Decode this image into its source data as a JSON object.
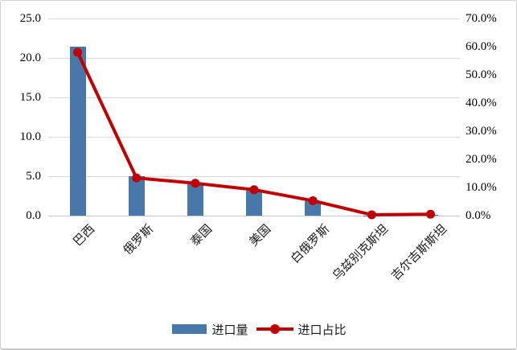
{
  "chart_data": {
    "type": "combo-bar-line",
    "title": "",
    "categories": [
      "巴西",
      "俄罗斯",
      "泰国",
      "美国",
      "白俄罗斯",
      "乌兹别克斯坦",
      "吉尔吉斯斯坦"
    ],
    "series": [
      {
        "name": "进口量",
        "type": "bar",
        "axis": "left",
        "values": [
          21.4,
          5.0,
          4.0,
          3.2,
          1.8,
          0.05,
          0.1
        ]
      },
      {
        "name": "进口占比",
        "type": "line",
        "axis": "right",
        "unit": "%",
        "values": [
          58.0,
          13.4,
          11.5,
          9.2,
          5.3,
          0.3,
          0.5
        ]
      }
    ],
    "left_axis": {
      "min": 0,
      "max": 25,
      "ticks": [
        "25.0",
        "20.0",
        "15.0",
        "10.0",
        "5.0",
        "0.0"
      ]
    },
    "right_axis": {
      "min": 0,
      "max": 70,
      "ticks": [
        "70.0%",
        "60.0%",
        "50.0%",
        "40.0%",
        "30.0%",
        "20.0%",
        "10.0%",
        "0.0%"
      ]
    },
    "grid": true,
    "legend_position": "bottom"
  },
  "legend": {
    "items": [
      {
        "label": "进口量",
        "swatch": "bar"
      },
      {
        "label": "进口占比",
        "swatch": "line-marker"
      }
    ]
  },
  "colors": {
    "bar": "#4878a9",
    "line": "#c00000",
    "marker": "#c00000",
    "grid": "#d9d9d9",
    "baseline": "#c6c6c6",
    "text": "#000000",
    "border": "#cfcfcf",
    "background": "#ffffff"
  }
}
